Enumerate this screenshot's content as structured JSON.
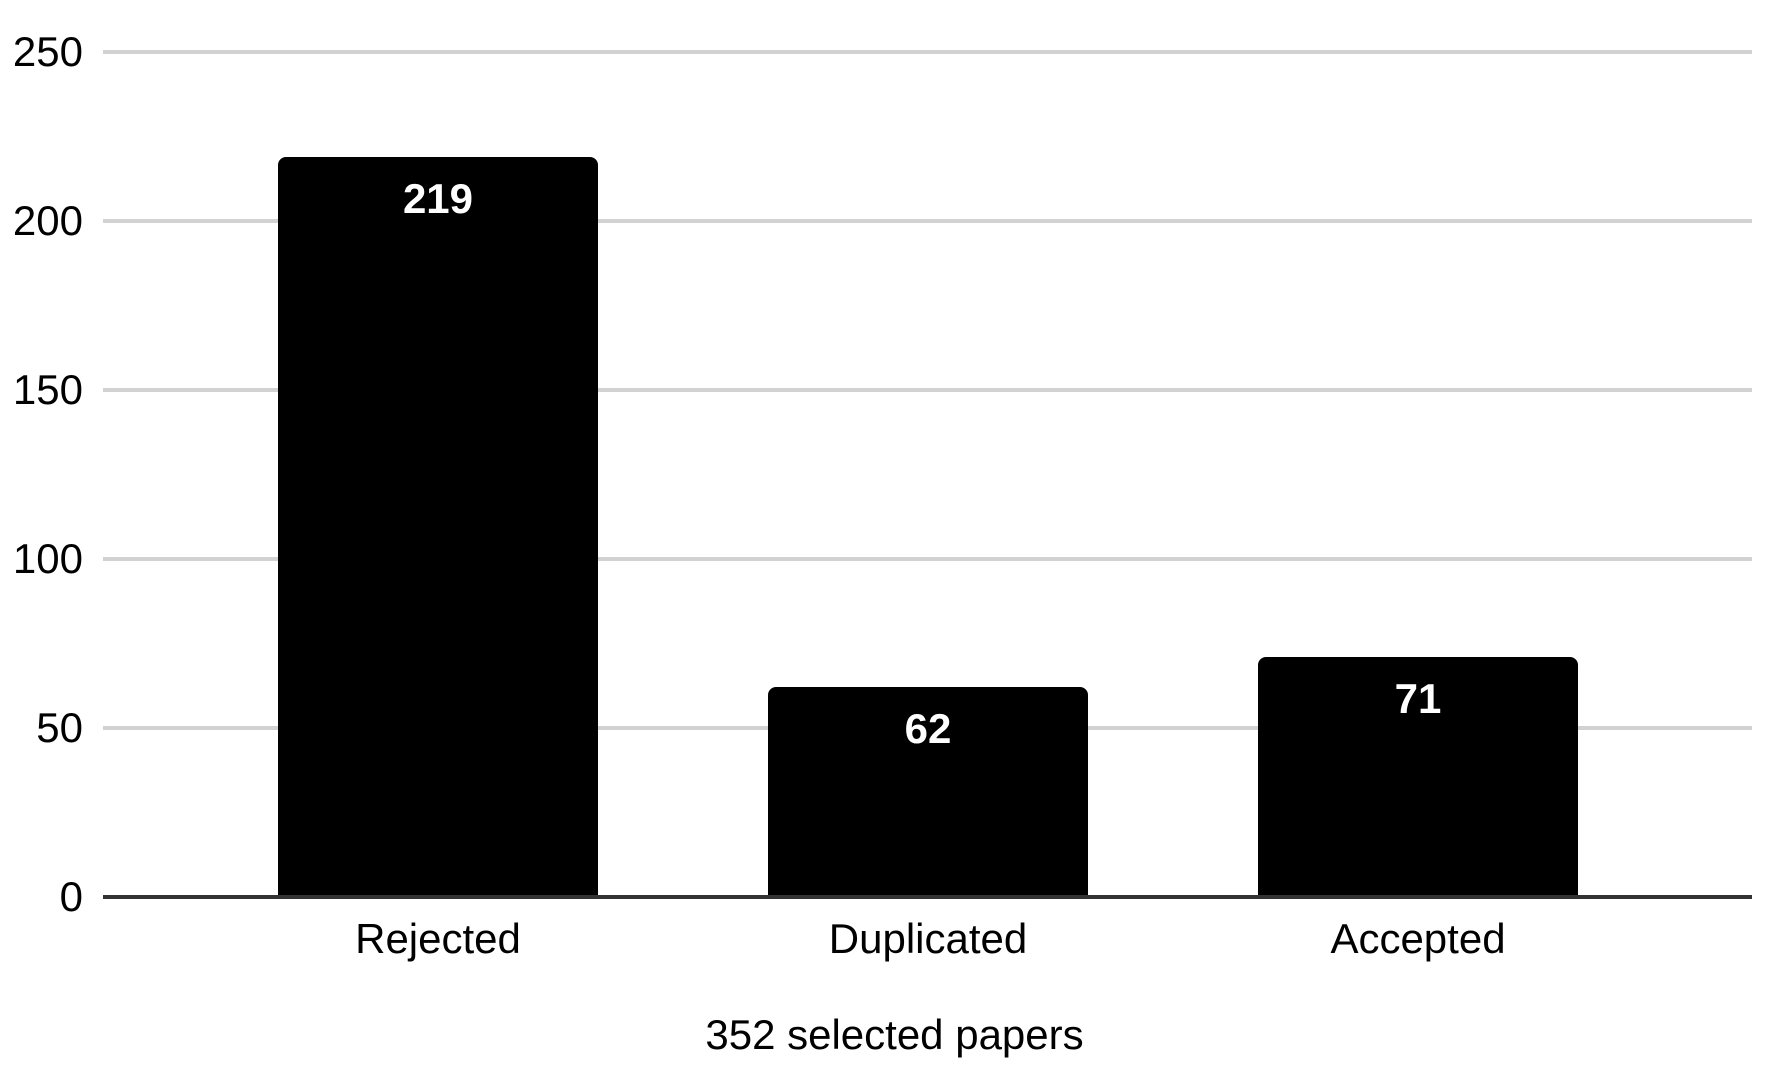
{
  "chart_data": {
    "type": "bar",
    "categories": [
      "Rejected",
      "Duplicated",
      "Accepted"
    ],
    "values": [
      219,
      62,
      71
    ],
    "title": "",
    "xlabel": "352 selected papers",
    "ylabel": "",
    "ylim": [
      0,
      250
    ],
    "yticks": [
      0,
      50,
      100,
      150,
      200,
      250
    ],
    "grid": true,
    "legend_position": "none",
    "bar_color": "#000000",
    "value_label_color": "#ffffff",
    "gridline_color": "#d2d2d2",
    "axis_line_color": "#333333",
    "text_color": "#000000"
  }
}
